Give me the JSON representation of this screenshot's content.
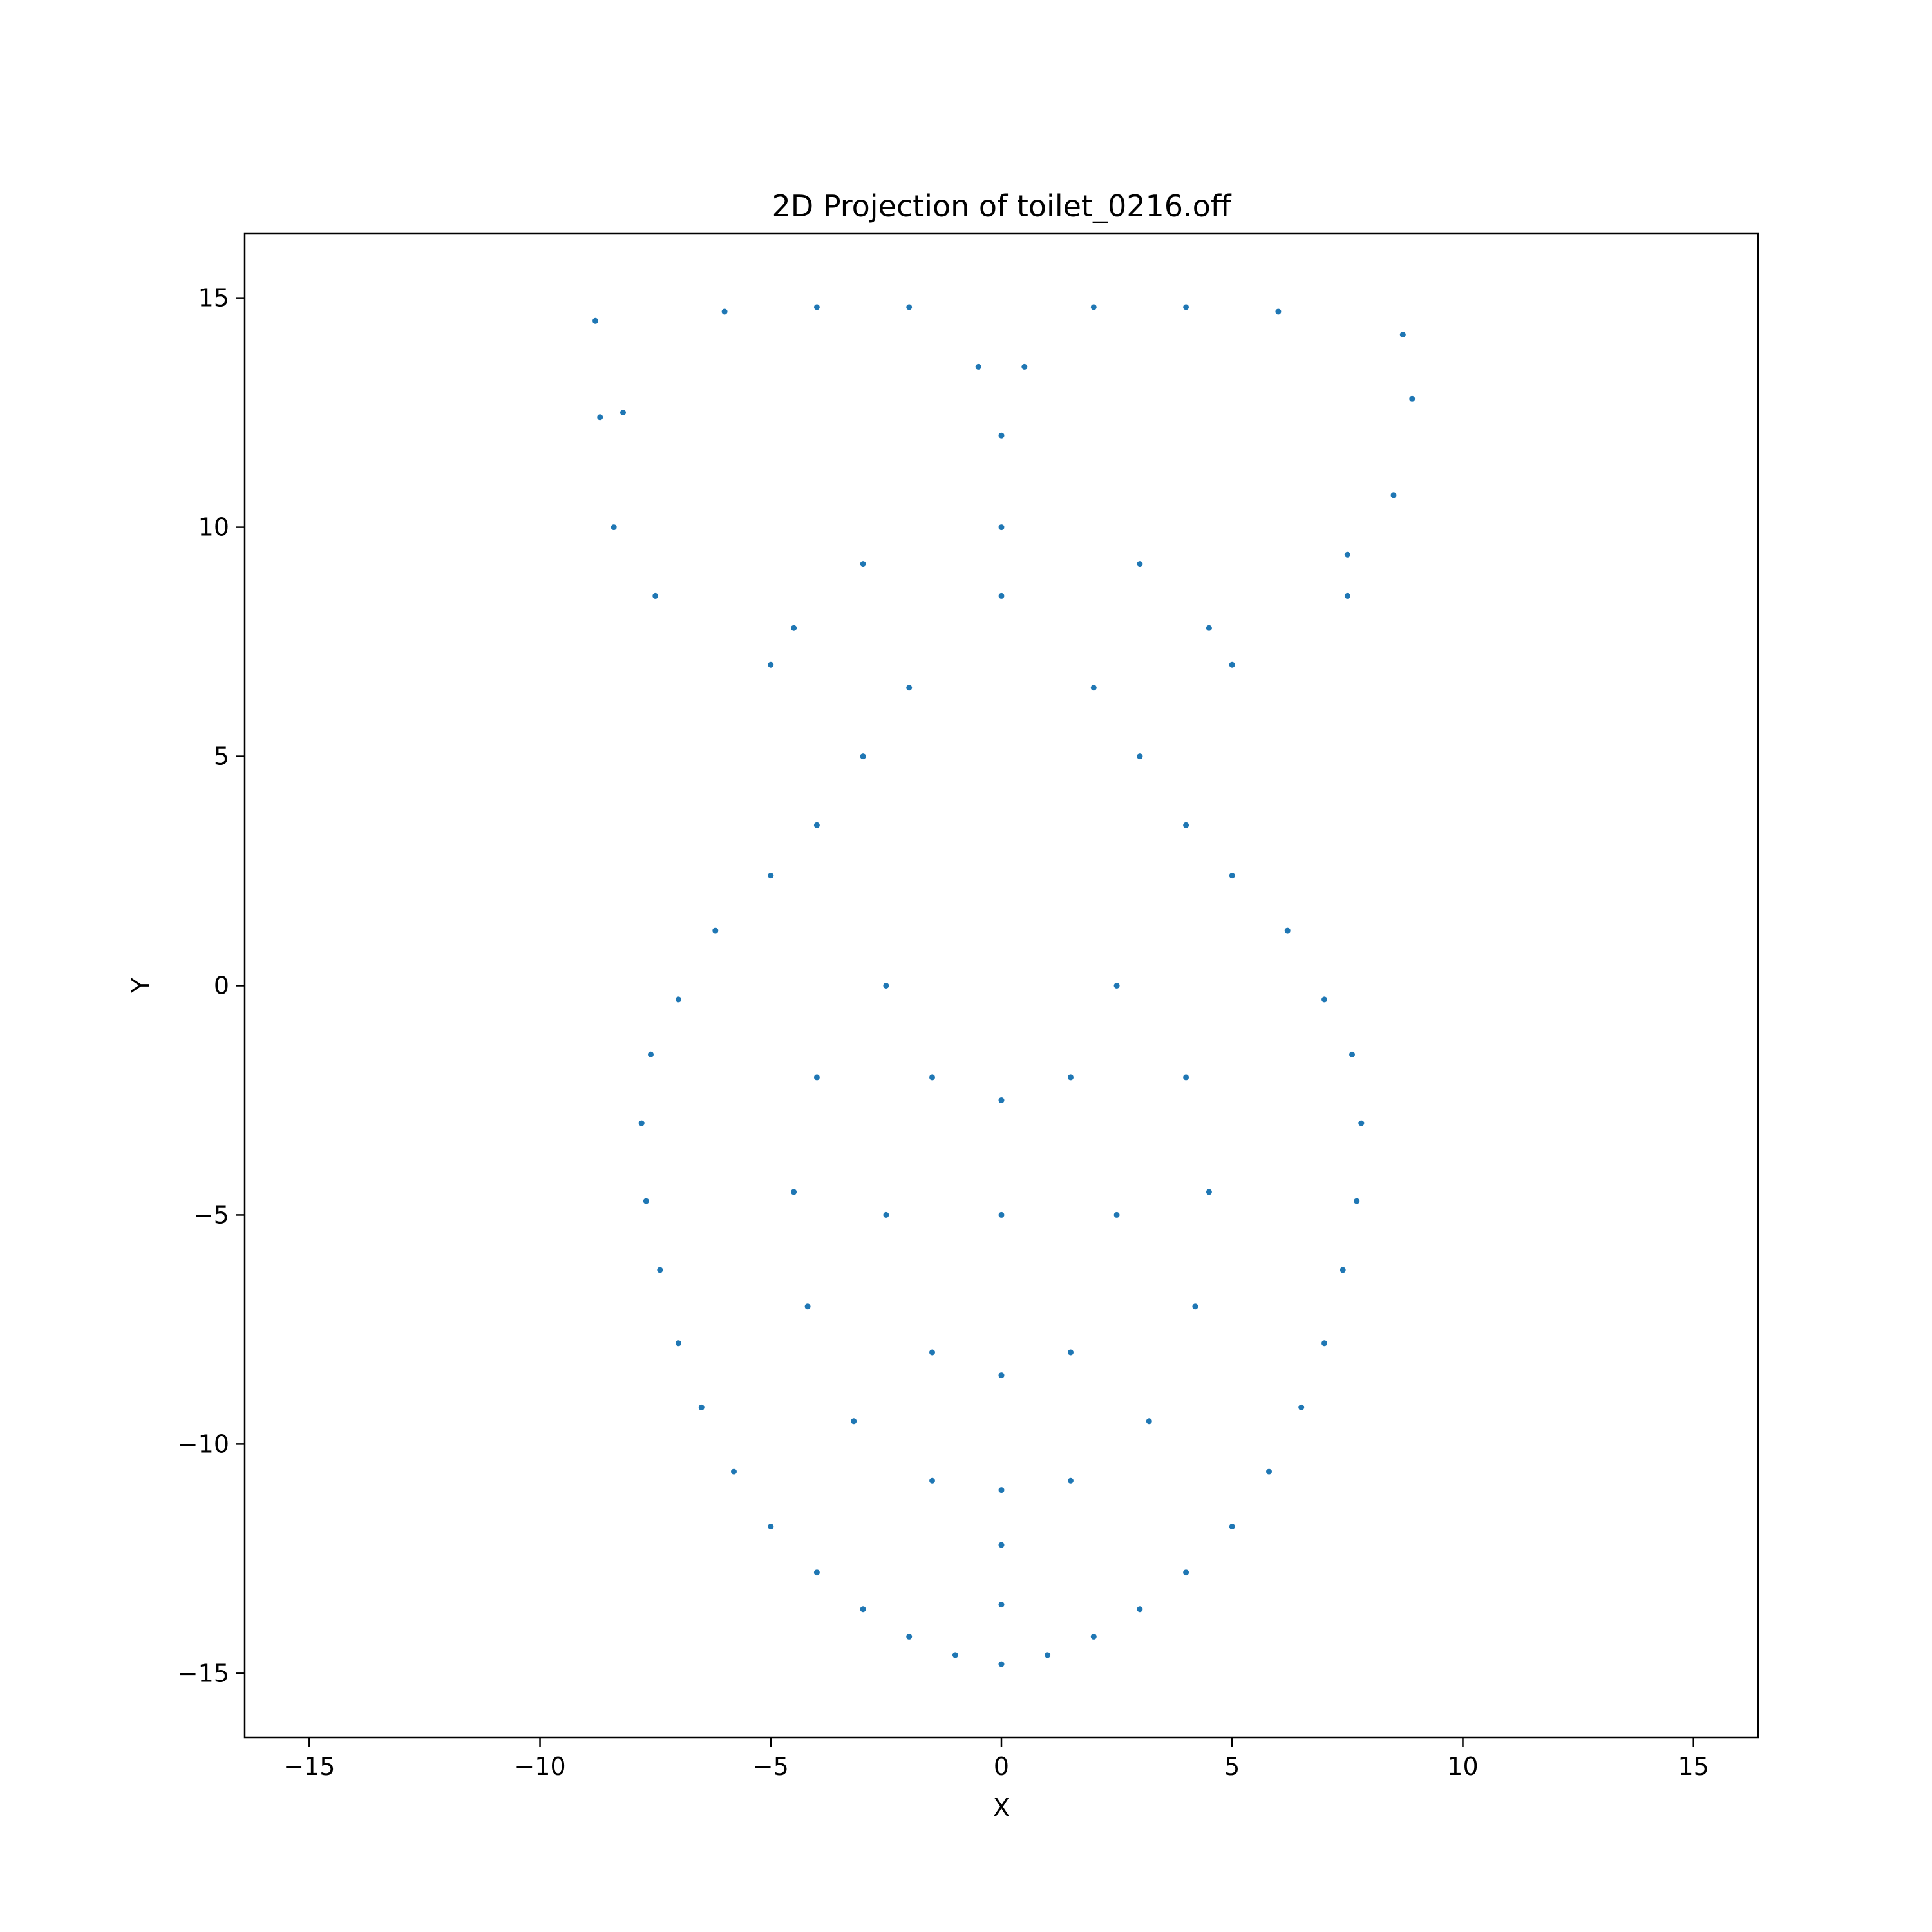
{
  "chart_data": {
    "type": "scatter",
    "title": "2D Projection of toilet_0216.off",
    "xlabel": "X",
    "ylabel": "Y",
    "xlim": [
      -16.4,
      16.4
    ],
    "ylim": [
      -16.4,
      16.4
    ],
    "x_ticks": [
      {
        "value": -15,
        "label": "−15"
      },
      {
        "value": -10,
        "label": "−10"
      },
      {
        "value": -5,
        "label": "−5"
      },
      {
        "value": 0,
        "label": "0"
      },
      {
        "value": 5,
        "label": "5"
      },
      {
        "value": 10,
        "label": "10"
      },
      {
        "value": 15,
        "label": "15"
      }
    ],
    "y_ticks": [
      {
        "value": -15,
        "label": "−15"
      },
      {
        "value": -10,
        "label": "−10"
      },
      {
        "value": -5,
        "label": "−5"
      },
      {
        "value": 0,
        "label": "0"
      },
      {
        "value": 5,
        "label": "5"
      },
      {
        "value": 10,
        "label": "10"
      },
      {
        "value": 15,
        "label": "15"
      }
    ],
    "grid": false,
    "marker_color": "#1f77b4",
    "series": [
      {
        "points": [
          [
            0,
            -14.8
          ],
          [
            0,
            -13.5
          ],
          [
            0,
            -12.2
          ],
          [
            0,
            -11.0
          ],
          [
            -1.0,
            -14.6
          ],
          [
            1.0,
            -14.6
          ],
          [
            -2.0,
            -14.2
          ],
          [
            2.0,
            -14.2
          ],
          [
            -3.0,
            -13.6
          ],
          [
            3.0,
            -13.6
          ],
          [
            -4.0,
            -12.8
          ],
          [
            4.0,
            -12.8
          ],
          [
            -5.0,
            -11.8
          ],
          [
            5.0,
            -11.8
          ],
          [
            -5.8,
            -10.6
          ],
          [
            5.8,
            -10.6
          ],
          [
            -6.5,
            -9.2
          ],
          [
            6.5,
            -9.2
          ],
          [
            -7.0,
            -7.8
          ],
          [
            7.0,
            -7.8
          ],
          [
            -7.4,
            -6.2
          ],
          [
            7.4,
            -6.2
          ],
          [
            -7.7,
            -4.7
          ],
          [
            7.7,
            -4.7
          ],
          [
            -7.8,
            -3.0
          ],
          [
            7.8,
            -3.0
          ],
          [
            -7.6,
            -1.5
          ],
          [
            7.6,
            -1.5
          ],
          [
            -7.0,
            -0.3
          ],
          [
            7.0,
            -0.3
          ],
          [
            -6.2,
            1.2
          ],
          [
            6.2,
            1.2
          ],
          [
            -5.0,
            2.4
          ],
          [
            5.0,
            2.4
          ],
          [
            -4.0,
            3.5
          ],
          [
            4.0,
            3.5
          ],
          [
            -3.0,
            5.0
          ],
          [
            3.0,
            5.0
          ],
          [
            -2.0,
            6.5
          ],
          [
            2.0,
            6.5
          ],
          [
            0,
            12.0
          ],
          [
            0,
            10.0
          ],
          [
            0,
            8.5
          ],
          [
            -0.5,
            13.5
          ],
          [
            0.5,
            13.5
          ],
          [
            -8.7,
            12.4
          ],
          [
            -8.2,
            12.5
          ],
          [
            -8.4,
            10.0
          ],
          [
            -8.8,
            14.5
          ],
          [
            -6.0,
            14.7
          ],
          [
            8.7,
            14.2
          ],
          [
            8.9,
            12.8
          ],
          [
            8.5,
            10.7
          ],
          [
            7.5,
            9.4
          ],
          [
            6.0,
            14.7
          ],
          [
            -7.5,
            8.5
          ],
          [
            7.5,
            8.5
          ],
          [
            -5.0,
            7.0
          ],
          [
            5.0,
            7.0
          ],
          [
            -4.5,
            7.8
          ],
          [
            4.5,
            7.8
          ],
          [
            -3.0,
            9.2
          ],
          [
            3.0,
            9.2
          ],
          [
            -2.0,
            14.8
          ],
          [
            2.0,
            14.8
          ],
          [
            -4.0,
            14.8
          ],
          [
            4.0,
            14.8
          ],
          [
            0,
            -5.0
          ],
          [
            0,
            -2.5
          ],
          [
            0,
            -8.5
          ],
          [
            -2.5,
            -5.0
          ],
          [
            2.5,
            -5.0
          ],
          [
            -1.5,
            -2.0
          ],
          [
            1.5,
            -2.0
          ],
          [
            -1.5,
            -8.0
          ],
          [
            1.5,
            -8.0
          ],
          [
            -4.5,
            -4.5
          ],
          [
            4.5,
            -4.5
          ],
          [
            -4.2,
            -7.0
          ],
          [
            4.2,
            -7.0
          ],
          [
            -3.2,
            -9.5
          ],
          [
            3.2,
            -9.5
          ],
          [
            -1.5,
            -10.8
          ],
          [
            1.5,
            -10.8
          ],
          [
            -4.0,
            -2.0
          ],
          [
            4.0,
            -2.0
          ],
          [
            -2.5,
            0.0
          ],
          [
            2.5,
            0.0
          ]
        ]
      }
    ]
  }
}
